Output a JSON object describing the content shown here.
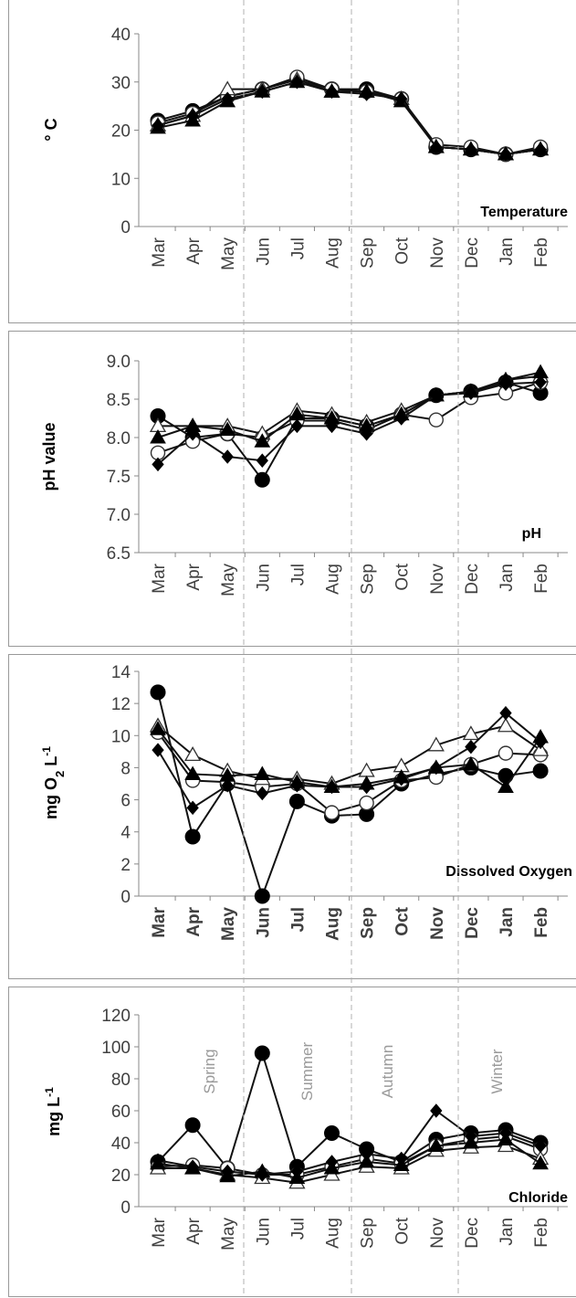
{
  "months": [
    "Mar",
    "Apr",
    "May",
    "Jun",
    "Jul",
    "Aug",
    "Sep",
    "Oct",
    "Nov",
    "Dec",
    "Jan",
    "Feb"
  ],
  "seasons": [
    "Spring",
    "Summer",
    "Autumn",
    "Winter"
  ],
  "chart_data": [
    {
      "type": "line",
      "title": "Temperature",
      "ylabel": "° C",
      "ylim": [
        0,
        40
      ],
      "yticks": [
        "0",
        "10",
        "20",
        "30",
        "40"
      ],
      "series": [
        {
          "marker": "circle-filled",
          "values": [
            22,
            24,
            27,
            28.5,
            30.5,
            28.5,
            28.5,
            26.5,
            16.5,
            16,
            15,
            16
          ]
        },
        {
          "marker": "circle-open",
          "values": [
            21.5,
            23.5,
            27,
            28.5,
            31,
            28.5,
            28,
            26.5,
            17,
            16.5,
            15,
            16.5
          ]
        },
        {
          "marker": "triangle-open",
          "values": [
            21,
            23,
            28.5,
            28.5,
            30.5,
            28,
            28,
            26.5,
            16.5,
            16,
            15,
            16
          ]
        },
        {
          "marker": "triangle-filled",
          "values": [
            20.5,
            22,
            26,
            28,
            30,
            28,
            28,
            26,
            16.5,
            16,
            15,
            16
          ]
        },
        {
          "marker": "diamond-filled",
          "values": [
            21,
            23,
            26.5,
            28,
            30,
            28,
            27.5,
            26.5,
            16.5,
            16,
            15,
            16
          ]
        }
      ]
    },
    {
      "type": "line",
      "title": "pH",
      "ylabel": "pH value",
      "ylim": [
        6.5,
        9.0
      ],
      "yticks": [
        "6.5",
        "7.0",
        "7.5",
        "8.0",
        "8.5",
        "9.0"
      ],
      "series": [
        {
          "marker": "circle-filled",
          "values": [
            8.28,
            8.0,
            8.05,
            7.45,
            8.25,
            8.25,
            8.15,
            8.3,
            8.55,
            8.6,
            8.72,
            8.58
          ]
        },
        {
          "marker": "circle-open",
          "values": [
            7.8,
            7.95,
            8.05,
            8.0,
            8.22,
            8.22,
            8.1,
            8.3,
            8.23,
            8.52,
            8.58,
            8.72
          ]
        },
        {
          "marker": "triangle-open",
          "values": [
            8.15,
            8.15,
            8.15,
            8.05,
            8.35,
            8.3,
            8.2,
            8.35,
            8.55,
            8.6,
            8.75,
            8.8
          ]
        },
        {
          "marker": "triangle-filled",
          "values": [
            8.0,
            8.15,
            8.1,
            7.95,
            8.3,
            8.25,
            8.15,
            8.3,
            8.55,
            8.6,
            8.75,
            8.85
          ]
        },
        {
          "marker": "diamond-filled",
          "values": [
            7.65,
            8.05,
            7.75,
            7.7,
            8.15,
            8.15,
            8.05,
            8.25,
            8.55,
            8.58,
            8.7,
            8.72
          ]
        }
      ]
    },
    {
      "type": "line",
      "title": "Dissolved Oxygen",
      "ylabel_main": "mg O",
      "ylabel_sub": "2",
      "ylabel_tail": "L",
      "ylabel_sup": "-1",
      "ylim": [
        0,
        14
      ],
      "yticks": [
        "0",
        "2",
        "4",
        "6",
        "8",
        "10",
        "12",
        "14"
      ],
      "series": [
        {
          "marker": "circle-filled",
          "values": [
            12.7,
            3.7,
            7.0,
            0,
            5.9,
            5.0,
            5.1,
            7.0,
            7.6,
            8.0,
            7.5,
            7.8
          ]
        },
        {
          "marker": "circle-open",
          "values": [
            10.2,
            7.2,
            7.1,
            6.8,
            7.0,
            5.2,
            5.8,
            7.2,
            7.4,
            8.2,
            8.9,
            8.8
          ]
        },
        {
          "marker": "triangle-open",
          "values": [
            10.6,
            8.8,
            7.8,
            7.3,
            7.3,
            7.0,
            7.8,
            8.1,
            9.4,
            10.1,
            10.6,
            9.1
          ]
        },
        {
          "marker": "triangle-filled",
          "values": [
            10.4,
            7.6,
            7.5,
            7.6,
            7.1,
            6.8,
            7.0,
            7.4,
            8.0,
            8.2,
            6.8,
            9.9
          ]
        },
        {
          "marker": "diamond-filled",
          "values": [
            9.1,
            5.5,
            6.9,
            6.4,
            6.9,
            6.8,
            6.8,
            7.3,
            8.0,
            9.3,
            11.4,
            9.6
          ]
        }
      ]
    },
    {
      "type": "line",
      "title": "Chloride",
      "ylabel_main": "mg L",
      "ylabel_sup": "-1",
      "ylim": [
        0,
        120
      ],
      "yticks": [
        "0",
        "20",
        "40",
        "60",
        "80",
        "100",
        "120"
      ],
      "series": [
        {
          "marker": "circle-filled",
          "values": [
            28,
            51,
            24,
            96,
            25,
            46,
            36,
            28,
            42,
            46,
            48,
            40
          ]
        },
        {
          "marker": "circle-open",
          "values": [
            25,
            26,
            24,
            20,
            20,
            25,
            30,
            27,
            38,
            42,
            44,
            36
          ]
        },
        {
          "marker": "triangle-open",
          "values": [
            24,
            24,
            20,
            18,
            15,
            20,
            25,
            24,
            35,
            37,
            38,
            30
          ]
        },
        {
          "marker": "triangle-filled",
          "values": [
            27,
            24,
            19,
            22,
            18,
            24,
            28,
            26,
            38,
            40,
            42,
            27
          ]
        },
        {
          "marker": "diamond-filled",
          "values": [
            29,
            25,
            22,
            20,
            22,
            28,
            33,
            30,
            60,
            44,
            46,
            38
          ]
        }
      ]
    }
  ]
}
